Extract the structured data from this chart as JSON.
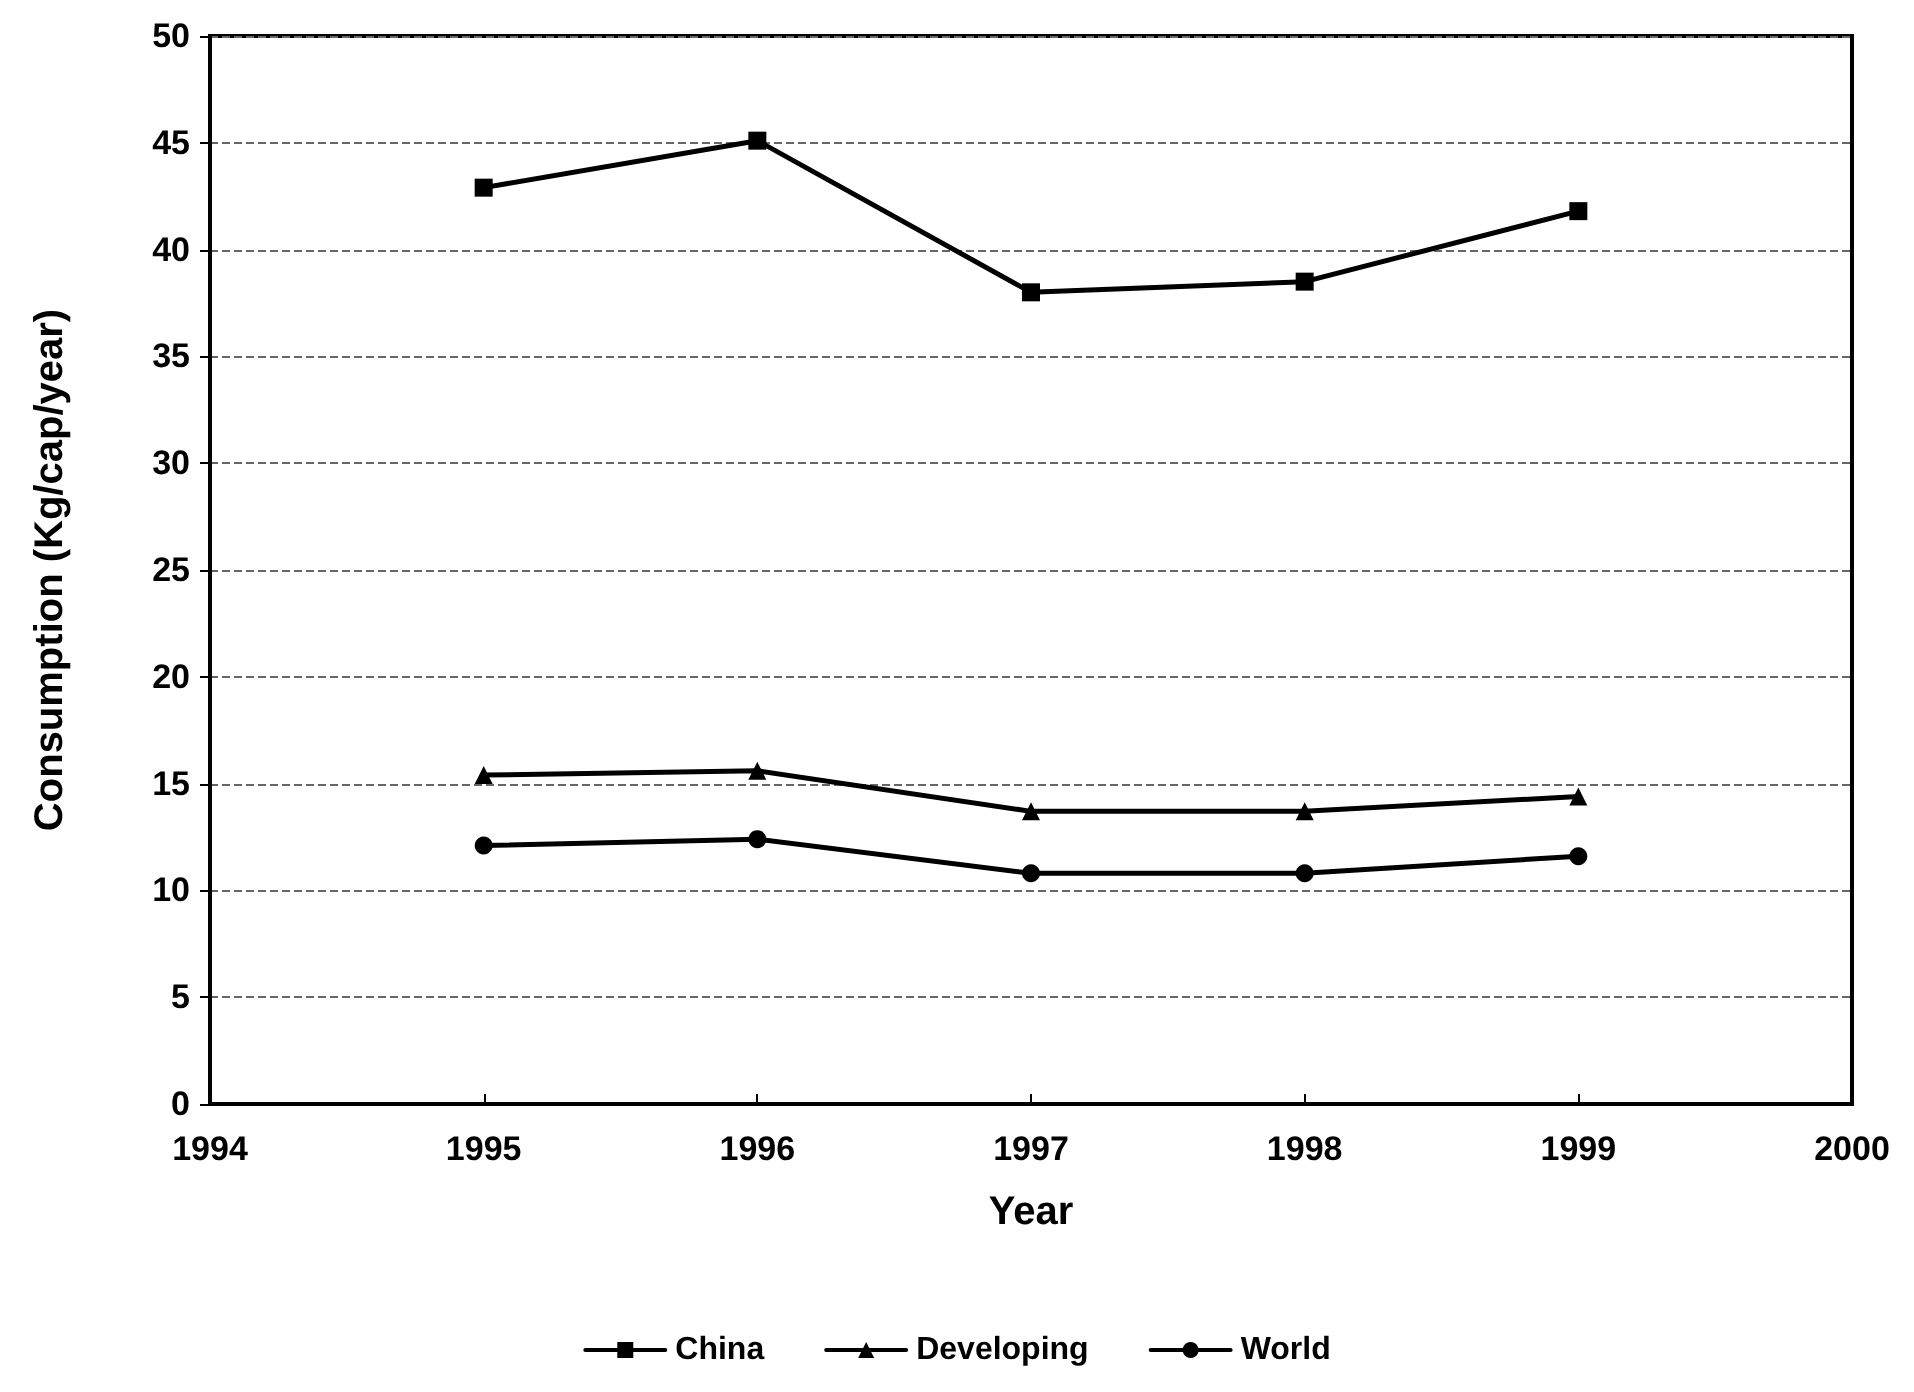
{
  "chart_data": {
    "type": "line",
    "xlabel": "Year",
    "ylabel": "Consumption (Kg/cap/year)",
    "x": [
      1995,
      1996,
      1997,
      1998,
      1999
    ],
    "series": [
      {
        "name": "China",
        "color": "#000000",
        "marker": "square",
        "values": [
          42.9,
          45.1,
          38.0,
          38.5,
          41.8
        ]
      },
      {
        "name": "Developing",
        "color": "#000000",
        "marker": "triangle",
        "values": [
          15.4,
          15.6,
          13.7,
          13.7,
          14.4
        ]
      },
      {
        "name": "World",
        "color": "#000000",
        "marker": "circle",
        "values": [
          12.1,
          12.4,
          10.8,
          10.8,
          11.6
        ]
      }
    ],
    "xlim": [
      1994,
      2000
    ],
    "xticks": [
      1994,
      1995,
      1996,
      1997,
      1998,
      1999,
      2000
    ],
    "ylim": [
      0,
      50
    ],
    "yticks": [
      0,
      5,
      10,
      15,
      20,
      25,
      30,
      35,
      40,
      45,
      50
    ],
    "grid": "y",
    "legend": "bottom",
    "line_style": "solid"
  }
}
